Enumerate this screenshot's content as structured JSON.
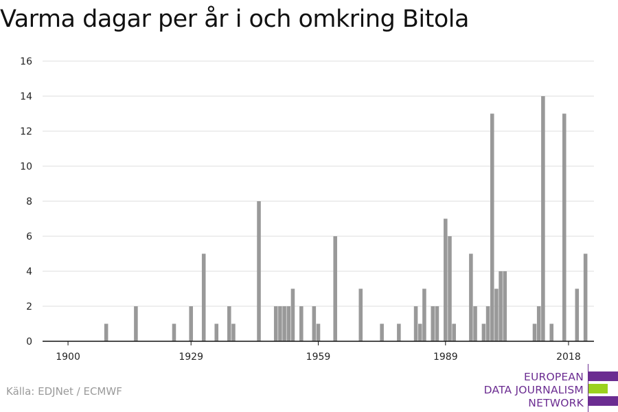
{
  "title": "Varma dagar per år i och omkring Bitola",
  "source": "Källa: EDJNet / ECMWF",
  "logo": {
    "lines": [
      "EUROPEAN",
      "DATA JOURNALISM",
      "NETWORK"
    ],
    "colors": {
      "purple": "#6b2c91",
      "green": "#9bd11e"
    }
  },
  "chart_data": {
    "type": "bar",
    "title": "Varma dagar per år i och omkring Bitola",
    "xlabel": "",
    "ylabel": "",
    "ylim": [
      0,
      16
    ],
    "xlim": [
      1894,
      2024
    ],
    "yticks": [
      0,
      2,
      4,
      6,
      8,
      10,
      12,
      14,
      16
    ],
    "xticks": [
      1900,
      1929,
      1959,
      1989,
      2018
    ],
    "grid": true,
    "bar_color": "#999999",
    "x": [
      1909,
      1916,
      1925,
      1929,
      1932,
      1935,
      1938,
      1939,
      1945,
      1949,
      1950,
      1951,
      1952,
      1953,
      1955,
      1958,
      1959,
      1963,
      1969,
      1974,
      1978,
      1982,
      1983,
      1984,
      1986,
      1987,
      1989,
      1990,
      1991,
      1995,
      1996,
      1998,
      1999,
      2000,
      2001,
      2002,
      2003,
      2010,
      2011,
      2012,
      2014,
      2017,
      2020,
      2022
    ],
    "values": [
      1,
      2,
      1,
      2,
      5,
      1,
      2,
      1,
      8,
      2,
      2,
      2,
      2,
      3,
      2,
      2,
      1,
      6,
      3,
      1,
      1,
      2,
      1,
      3,
      2,
      2,
      7,
      6,
      1,
      5,
      2,
      1,
      2,
      13,
      3,
      4,
      4,
      1,
      2,
      14,
      1,
      13,
      3,
      5
    ]
  }
}
